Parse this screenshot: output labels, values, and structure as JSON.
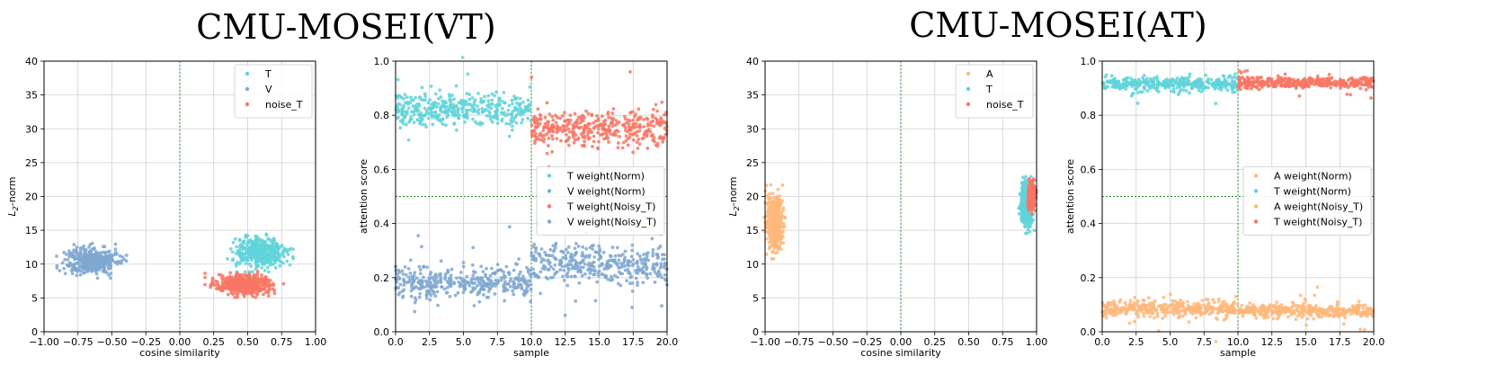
{
  "groups": [
    {
      "title": "CMU-MOSEI(VT)"
    },
    {
      "title": "CMU-MOSEI(AT)"
    }
  ],
  "colors": {
    "T": "#5fd3d9",
    "V": "#7fa8d1",
    "noise_T": "#f87564",
    "A": "#ffb77a",
    "vline": "#2a8a2a",
    "hline": "#2a8a2a"
  },
  "chart_data": [
    {
      "type": "scatter",
      "title": "",
      "xlabel": "cosine similarity",
      "ylabel": "L2-norm",
      "xlim": [
        -1.0,
        1.0
      ],
      "ylim": [
        0,
        40
      ],
      "xticks": [
        "−1.00",
        "−0.75",
        "−0.50",
        "−0.25",
        "0.00",
        "0.25",
        "0.50",
        "0.75",
        "1.00"
      ],
      "yticks": [
        "0",
        "5",
        "10",
        "15",
        "20",
        "25",
        "30",
        "35",
        "40"
      ],
      "grid": true,
      "vline": 0.0,
      "legend_position": "top-right",
      "series": [
        {
          "name": "T",
          "color": "#5fd3d9",
          "clusters": [
            {
              "x": [
                0.4,
                0.78
              ],
              "y": [
                9.5,
                14.0
              ]
            }
          ]
        },
        {
          "name": "V",
          "color": "#7fa8d1",
          "clusters": [
            {
              "x": [
                -0.85,
                -0.45
              ],
              "y": [
                8.5,
                12.5
              ]
            }
          ]
        },
        {
          "name": "noise_T",
          "color": "#f87564",
          "clusters": [
            {
              "x": [
                0.25,
                0.7
              ],
              "y": [
                5.5,
                8.5
              ]
            }
          ]
        }
      ]
    },
    {
      "type": "scatter",
      "title": "",
      "xlabel": "sample",
      "ylabel": "attention score",
      "xlim": [
        0.0,
        20.0
      ],
      "ylim": [
        0.0,
        1.0
      ],
      "xticks": [
        "0.0",
        "2.5",
        "5.0",
        "7.5",
        "10.0",
        "12.5",
        "15.0",
        "17.5",
        "20.0"
      ],
      "yticks": [
        "0.0",
        "0.2",
        "0.4",
        "0.6",
        "0.8",
        "1.0"
      ],
      "grid": true,
      "vline": 10.0,
      "hline": 0.5,
      "legend_position": "center-right",
      "series": [
        {
          "name": "T weight(Norm)",
          "color": "#5fd3d9",
          "x_range": [
            0,
            10
          ],
          "y_mean": 0.82,
          "y_spread": 0.03
        },
        {
          "name": "V weight(Norm)",
          "color": "#7fa8d1",
          "x_range": [
            0,
            10
          ],
          "y_mean": 0.18,
          "y_spread": 0.03
        },
        {
          "name": "T weight(Noisy_T)",
          "color": "#f87564",
          "x_range": [
            10,
            20
          ],
          "y_mean": 0.75,
          "y_spread": 0.035
        },
        {
          "name": "V weight(Noisy_T)",
          "color": "#7fa8d1",
          "x_range": [
            10,
            20
          ],
          "y_mean": 0.25,
          "y_spread": 0.035
        }
      ]
    },
    {
      "type": "scatter",
      "title": "",
      "xlabel": "cosine similarity",
      "ylabel": "L2-norm",
      "xlim": [
        -1.0,
        1.0
      ],
      "ylim": [
        0,
        40
      ],
      "xticks": [
        "−1.00",
        "−0.75",
        "−0.50",
        "−0.25",
        "0.00",
        "0.25",
        "0.50",
        "0.75",
        "1.00"
      ],
      "yticks": [
        "0",
        "5",
        "10",
        "15",
        "20",
        "25",
        "30",
        "35",
        "40"
      ],
      "grid": true,
      "vline": 0.0,
      "legend_position": "top-right",
      "series": [
        {
          "name": "A",
          "color": "#ffb77a",
          "clusters": [
            {
              "x": [
                -0.99,
                -0.87
              ],
              "y": [
                12.0,
                20.5
              ]
            }
          ]
        },
        {
          "name": "T",
          "color": "#5fd3d9",
          "clusters": [
            {
              "x": [
                0.88,
                0.97
              ],
              "y": [
                15.5,
                22.0
              ]
            }
          ]
        },
        {
          "name": "noise_T",
          "color": "#f87564",
          "clusters": [
            {
              "x": [
                0.94,
                0.99
              ],
              "y": [
                18.0,
                22.0
              ]
            }
          ]
        }
      ]
    },
    {
      "type": "scatter",
      "title": "",
      "xlabel": "sample",
      "ylabel": "attention score",
      "xlim": [
        0.0,
        20.0
      ],
      "ylim": [
        0.0,
        1.0
      ],
      "xticks": [
        "0.0",
        "2.5",
        "5.0",
        "7.5",
        "10.0",
        "12.5",
        "15.0",
        "17.5",
        "20.0"
      ],
      "yticks": [
        "0.0",
        "0.2",
        "0.4",
        "0.6",
        "0.8",
        "1.0"
      ],
      "grid": true,
      "vline": 10.0,
      "hline": 0.5,
      "legend_position": "center-right",
      "series": [
        {
          "name": "A weight(Norm)",
          "color": "#ffb77a",
          "x_range": [
            0,
            10
          ],
          "y_mean": 0.085,
          "y_spread": 0.015
        },
        {
          "name": "T weight(Norm)",
          "color": "#5fd3d9",
          "x_range": [
            0,
            10
          ],
          "y_mean": 0.915,
          "y_spread": 0.012
        },
        {
          "name": "A weight(Noisy_T)",
          "color": "#ffb77a",
          "x_range": [
            10,
            20
          ],
          "y_mean": 0.078,
          "y_spread": 0.012
        },
        {
          "name": "T weight(Noisy_T)",
          "color": "#f87564",
          "x_range": [
            10,
            20
          ],
          "y_mean": 0.92,
          "y_spread": 0.01
        }
      ]
    }
  ]
}
